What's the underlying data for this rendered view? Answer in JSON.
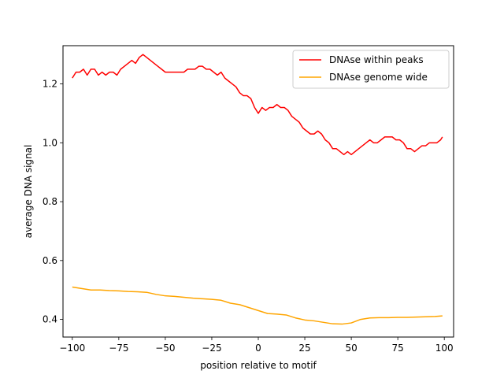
{
  "chart_data": {
    "type": "line",
    "xlabel": "position relative to motif",
    "ylabel": "average DNA signal",
    "xlim": [
      -105,
      105
    ],
    "ylim": [
      0.34,
      1.33
    ],
    "xticks": [
      -100,
      -75,
      -50,
      -25,
      0,
      25,
      50,
      75,
      100
    ],
    "xtick_labels": [
      "−100",
      "−75",
      "−50",
      "−25",
      "0",
      "25",
      "50",
      "75",
      "100"
    ],
    "yticks": [
      0.4,
      0.6,
      0.8,
      1.0,
      1.2
    ],
    "ytick_labels": [
      "0.4",
      "0.6",
      "0.8",
      "1.0",
      "1.2"
    ],
    "grid": false,
    "legend_position": "top-right",
    "series": [
      {
        "name": "DNAse within peaks",
        "color": "#ff0000",
        "x": [
          -100,
          -98,
          -96,
          -94,
          -92,
          -90,
          -88,
          -86,
          -84,
          -82,
          -80,
          -78,
          -76,
          -74,
          -72,
          -70,
          -68,
          -66,
          -64,
          -62,
          -60,
          -58,
          -56,
          -54,
          -52,
          -50,
          -48,
          -46,
          -44,
          -42,
          -40,
          -38,
          -36,
          -34,
          -32,
          -30,
          -28,
          -26,
          -24,
          -22,
          -20,
          -18,
          -16,
          -14,
          -12,
          -10,
          -8,
          -6,
          -4,
          -2,
          0,
          2,
          4,
          6,
          8,
          10,
          12,
          14,
          16,
          18,
          20,
          22,
          24,
          26,
          28,
          30,
          32,
          34,
          36,
          38,
          40,
          42,
          44,
          46,
          48,
          50,
          52,
          54,
          56,
          58,
          60,
          62,
          64,
          66,
          68,
          70,
          72,
          74,
          76,
          78,
          80,
          82,
          84,
          86,
          88,
          90,
          92,
          94,
          96,
          98,
          99
        ],
        "y": [
          1.22,
          1.24,
          1.24,
          1.25,
          1.23,
          1.25,
          1.25,
          1.23,
          1.24,
          1.23,
          1.24,
          1.24,
          1.23,
          1.25,
          1.26,
          1.27,
          1.28,
          1.27,
          1.29,
          1.3,
          1.29,
          1.28,
          1.27,
          1.26,
          1.25,
          1.24,
          1.24,
          1.24,
          1.24,
          1.24,
          1.24,
          1.25,
          1.25,
          1.25,
          1.26,
          1.26,
          1.25,
          1.25,
          1.24,
          1.23,
          1.24,
          1.22,
          1.21,
          1.2,
          1.19,
          1.17,
          1.16,
          1.16,
          1.15,
          1.12,
          1.1,
          1.12,
          1.11,
          1.12,
          1.12,
          1.13,
          1.12,
          1.12,
          1.11,
          1.09,
          1.08,
          1.07,
          1.05,
          1.04,
          1.03,
          1.03,
          1.04,
          1.03,
          1.01,
          1.0,
          0.98,
          0.98,
          0.97,
          0.96,
          0.97,
          0.96,
          0.97,
          0.98,
          0.99,
          1.0,
          1.01,
          1.0,
          1.0,
          1.01,
          1.02,
          1.02,
          1.02,
          1.01,
          1.01,
          1.0,
          0.98,
          0.98,
          0.97,
          0.98,
          0.99,
          0.99,
          1.0,
          1.0,
          1.0,
          1.01,
          1.02
        ]
      },
      {
        "name": "DNAse genome wide",
        "color": "#ffa500",
        "x": [
          -100,
          -95,
          -90,
          -85,
          -80,
          -75,
          -70,
          -65,
          -60,
          -55,
          -50,
          -45,
          -40,
          -35,
          -30,
          -25,
          -20,
          -15,
          -10,
          -5,
          0,
          5,
          10,
          15,
          20,
          25,
          30,
          35,
          40,
          45,
          50,
          55,
          60,
          65,
          70,
          75,
          80,
          85,
          90,
          95,
          99
        ],
        "y": [
          0.51,
          0.505,
          0.5,
          0.5,
          0.498,
          0.497,
          0.495,
          0.494,
          0.492,
          0.485,
          0.48,
          0.478,
          0.475,
          0.472,
          0.47,
          0.468,
          0.465,
          0.455,
          0.45,
          0.44,
          0.43,
          0.42,
          0.418,
          0.415,
          0.405,
          0.398,
          0.395,
          0.39,
          0.385,
          0.384,
          0.388,
          0.4,
          0.405,
          0.406,
          0.406,
          0.407,
          0.407,
          0.408,
          0.409,
          0.41,
          0.412
        ]
      }
    ]
  }
}
